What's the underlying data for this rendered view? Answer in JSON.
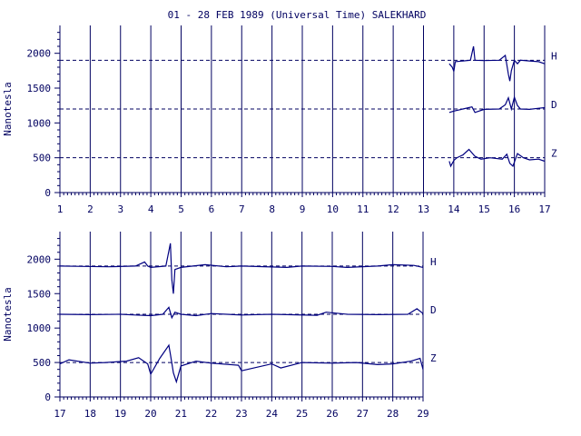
{
  "title": "01 - 28 FEB 1989 (Universal Time) SALEKHARD",
  "colors": {
    "axis": "#000060",
    "trace": "#000080",
    "background": "#ffffff"
  },
  "chart_data": [
    {
      "type": "line",
      "title": "01 - 28 FEB 1989 (Universal Time) SALEKHARD",
      "ylabel": "Nanotesla",
      "xlabel": "",
      "xlim": [
        1,
        17
      ],
      "ylim": [
        0,
        2400
      ],
      "x_ticks": [
        "1",
        "2",
        "3",
        "4",
        "5",
        "6",
        "7",
        "8",
        "9",
        "10",
        "11",
        "12",
        "13",
        "14",
        "15",
        "16",
        "17"
      ],
      "y_ticks": [
        "0",
        "500",
        "1000",
        "1500",
        "2000"
      ],
      "grid": true,
      "baselines": [
        {
          "name": "H",
          "value": 1900
        },
        {
          "name": "D",
          "value": 1200
        },
        {
          "name": "Z",
          "value": 500
        }
      ],
      "series": [
        {
          "name": "H",
          "x": [
            13.85,
            13.95,
            14.0,
            14.05,
            14.3,
            14.55,
            14.65,
            14.7,
            15.0,
            15.5,
            15.7,
            15.8,
            15.85,
            15.9,
            16.0,
            16.1,
            16.2,
            16.5,
            16.8,
            17.0
          ],
          "y": [
            1850,
            1800,
            1740,
            1880,
            1890,
            1900,
            2100,
            1900,
            1895,
            1900,
            1970,
            1700,
            1600,
            1750,
            1900,
            1850,
            1900,
            1890,
            1880,
            1850
          ]
        },
        {
          "name": "D",
          "x": [
            13.85,
            14.0,
            14.3,
            14.6,
            14.7,
            15.0,
            15.5,
            15.7,
            15.8,
            15.9,
            16.0,
            16.1,
            16.2,
            16.5,
            16.8,
            17.0
          ],
          "y": [
            1150,
            1170,
            1200,
            1230,
            1150,
            1195,
            1200,
            1260,
            1360,
            1200,
            1370,
            1250,
            1200,
            1195,
            1210,
            1220
          ]
        },
        {
          "name": "Z",
          "x": [
            13.85,
            13.9,
            14.0,
            14.1,
            14.3,
            14.5,
            14.7,
            14.9,
            15.2,
            15.6,
            15.75,
            15.85,
            15.95,
            16.1,
            16.3,
            16.5,
            16.8,
            17.0
          ],
          "y": [
            450,
            380,
            460,
            500,
            540,
            620,
            520,
            480,
            500,
            480,
            550,
            420,
            380,
            560,
            500,
            470,
            480,
            450
          ]
        }
      ]
    },
    {
      "type": "line",
      "ylabel": "Nanotesla",
      "xlabel": "",
      "xlim": [
        17,
        29
      ],
      "ylim": [
        0,
        2400
      ],
      "x_ticks": [
        "17",
        "18",
        "19",
        "20",
        "21",
        "22",
        "23",
        "24",
        "25",
        "26",
        "27",
        "28",
        "29"
      ],
      "y_ticks": [
        "0",
        "500",
        "1000",
        "1500",
        "2000"
      ],
      "grid": true,
      "baselines": [
        {
          "name": "H",
          "value": 1900
        },
        {
          "name": "D",
          "value": 1200
        },
        {
          "name": "Z",
          "value": 500
        }
      ],
      "series": [
        {
          "name": "H",
          "x": [
            17,
            17.8,
            18.6,
            19.5,
            19.8,
            19.9,
            20.0,
            20.5,
            20.65,
            20.7,
            20.75,
            20.8,
            21.0,
            21.8,
            22.5,
            23.0,
            24.5,
            25.0,
            26.0,
            26.5,
            27.5,
            28.0,
            28.7,
            29.0
          ],
          "y": [
            1900,
            1895,
            1890,
            1900,
            1960,
            1900,
            1880,
            1900,
            2230,
            1700,
            1500,
            1850,
            1880,
            1920,
            1890,
            1900,
            1880,
            1900,
            1895,
            1880,
            1900,
            1920,
            1910,
            1880
          ]
        },
        {
          "name": "D",
          "x": [
            17,
            18,
            19,
            19.5,
            20.0,
            20.4,
            20.6,
            20.7,
            20.8,
            21.0,
            21.5,
            22.0,
            23.0,
            24.0,
            25.5,
            25.8,
            26.5,
            27.5,
            28.5,
            28.8,
            29.0
          ],
          "y": [
            1200,
            1195,
            1200,
            1190,
            1180,
            1200,
            1300,
            1150,
            1230,
            1200,
            1180,
            1210,
            1190,
            1200,
            1185,
            1230,
            1200,
            1195,
            1200,
            1280,
            1210
          ]
        },
        {
          "name": "Z",
          "x": [
            17,
            17.3,
            18,
            18.5,
            19.2,
            19.6,
            19.9,
            20.0,
            20.3,
            20.6,
            20.65,
            20.75,
            20.85,
            21.0,
            21.5,
            22.0,
            22.9,
            23.0,
            24.0,
            24.3,
            25.0,
            26.0,
            26.8,
            27.5,
            28.0,
            28.6,
            28.9,
            29.0
          ],
          "y": [
            480,
            540,
            490,
            500,
            520,
            570,
            480,
            330,
            560,
            750,
            620,
            350,
            220,
            450,
            520,
            490,
            460,
            380,
            480,
            420,
            500,
            490,
            500,
            470,
            480,
            520,
            560,
            400
          ]
        }
      ]
    }
  ]
}
